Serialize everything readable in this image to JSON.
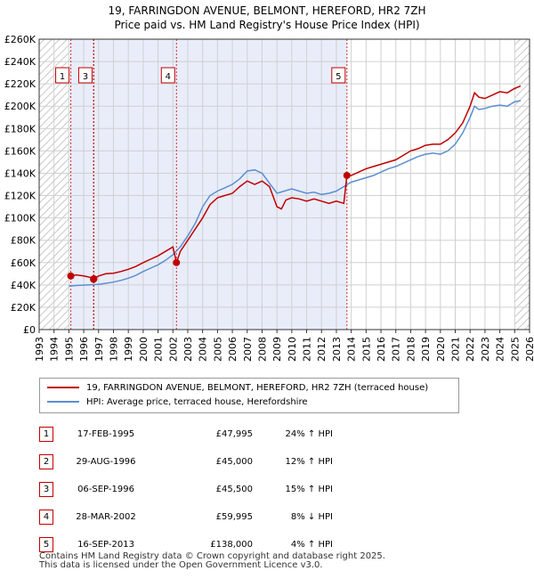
{
  "title_line1": "19, FARRINGDON AVENUE, BELMONT, HEREFORD, HR2 7ZH",
  "title_line2": "Price paid vs. HM Land Registry's House Price Index (HPI)",
  "colors": {
    "price": "#c00000",
    "hpi": "#5b8fd0",
    "shade": "#e9edfa",
    "grid": "#d0d0d0"
  },
  "chart_data": {
    "type": "line",
    "x_range": [
      1993,
      2026
    ],
    "ylim": [
      0,
      260000
    ],
    "y_ticks": [
      {
        "value": 0,
        "label": "£0"
      },
      {
        "value": 20000,
        "label": "£20K"
      },
      {
        "value": 40000,
        "label": "£40K"
      },
      {
        "value": 60000,
        "label": "£60K"
      },
      {
        "value": 80000,
        "label": "£80K"
      },
      {
        "value": 100000,
        "label": "£100K"
      },
      {
        "value": 120000,
        "label": "£120K"
      },
      {
        "value": 140000,
        "label": "£140K"
      },
      {
        "value": 160000,
        "label": "£160K"
      },
      {
        "value": 180000,
        "label": "£180K"
      },
      {
        "value": 200000,
        "label": "£200K"
      },
      {
        "value": 220000,
        "label": "£220K"
      },
      {
        "value": 240000,
        "label": "£240K"
      },
      {
        "value": 260000,
        "label": "£260K"
      }
    ],
    "x_ticks": [
      "1993",
      "1994",
      "1995",
      "1996",
      "1997",
      "1998",
      "1999",
      "2000",
      "2001",
      "2002",
      "2003",
      "2004",
      "2005",
      "2006",
      "2007",
      "2008",
      "2009",
      "2010",
      "2011",
      "2012",
      "2013",
      "2014",
      "2015",
      "2016",
      "2017",
      "2018",
      "2019",
      "2020",
      "2021",
      "2022",
      "2023",
      "2024",
      "2025",
      "2026"
    ],
    "shaded_spans": [
      [
        1995.13,
        2013.71
      ]
    ],
    "hatched_spans": [
      [
        1993,
        1995.13
      ],
      [
        2025.0,
        2026
      ]
    ],
    "series": [
      {
        "name": "19, FARRINGDON AVENUE, BELMONT, HEREFORD, HR2 7ZH (terraced house)",
        "x": [
          1995.13,
          1995.5,
          1996.0,
          1996.5,
          1996.66,
          1996.68,
          1997.0,
          1997.5,
          1998.0,
          1998.5,
          1999.0,
          1999.5,
          2000.0,
          2000.5,
          2001.0,
          2001.5,
          2002.0,
          2002.24,
          2002.5,
          2003.0,
          2003.5,
          2004.0,
          2004.5,
          2005.0,
          2005.5,
          2006.0,
          2006.5,
          2007.0,
          2007.5,
          2008.0,
          2008.5,
          2009.0,
          2009.3,
          2009.6,
          2010.0,
          2010.5,
          2011.0,
          2011.5,
          2012.0,
          2012.5,
          2013.0,
          2013.5,
          2013.71,
          2014.0,
          2014.5,
          2015.0,
          2015.5,
          2016.0,
          2016.5,
          2017.0,
          2017.5,
          2018.0,
          2018.5,
          2019.0,
          2019.5,
          2020.0,
          2020.5,
          2021.0,
          2021.5,
          2022.0,
          2022.3,
          2022.6,
          2023.0,
          2023.5,
          2024.0,
          2024.5,
          2025.0,
          2025.4
        ],
        "values": [
          47995,
          49000,
          48000,
          46500,
          45000,
          45500,
          48000,
          50000,
          50500,
          52000,
          54000,
          56500,
          60000,
          63000,
          66000,
          70000,
          74000,
          59995,
          70000,
          80000,
          90000,
          100000,
          112000,
          118000,
          120000,
          122000,
          128000,
          133000,
          130000,
          133000,
          128000,
          110000,
          108000,
          116000,
          118000,
          117000,
          115000,
          117000,
          115000,
          113000,
          115000,
          113000,
          138000,
          138000,
          141000,
          144000,
          146000,
          148000,
          150000,
          152000,
          156000,
          160000,
          162000,
          165000,
          166000,
          166000,
          170000,
          176000,
          185000,
          200000,
          212000,
          208000,
          207000,
          210000,
          213000,
          212000,
          216000,
          218000
        ]
      },
      {
        "name": "HPI: Average price, terraced house, Herefordshire",
        "x": [
          1995.0,
          1995.5,
          1996.0,
          1996.5,
          1997.0,
          1997.5,
          1998.0,
          1998.5,
          1999.0,
          1999.5,
          2000.0,
          2000.5,
          2001.0,
          2001.5,
          2002.0,
          2002.5,
          2003.0,
          2003.5,
          2004.0,
          2004.5,
          2005.0,
          2005.5,
          2006.0,
          2006.5,
          2007.0,
          2007.5,
          2008.0,
          2008.5,
          2009.0,
          2009.5,
          2010.0,
          2010.5,
          2011.0,
          2011.5,
          2012.0,
          2012.5,
          2013.0,
          2013.5,
          2014.0,
          2014.5,
          2015.0,
          2015.5,
          2016.0,
          2016.5,
          2017.0,
          2017.5,
          2018.0,
          2018.5,
          2019.0,
          2019.5,
          2020.0,
          2020.5,
          2021.0,
          2021.5,
          2022.0,
          2022.3,
          2022.6,
          2023.0,
          2023.5,
          2024.0,
          2024.5,
          2025.0,
          2025.4
        ],
        "values": [
          39000,
          39500,
          39800,
          40200,
          40500,
          41500,
          42500,
          44000,
          46000,
          48500,
          52000,
          55000,
          58000,
          62000,
          67000,
          74000,
          84000,
          95000,
          110000,
          120000,
          124000,
          127000,
          130000,
          135000,
          142000,
          143000,
          140000,
          131000,
          122000,
          124000,
          126000,
          124000,
          122000,
          123000,
          121000,
          122000,
          124000,
          128000,
          132000,
          134000,
          136000,
          138000,
          141000,
          144000,
          146000,
          149000,
          152000,
          155000,
          157000,
          158000,
          157000,
          160000,
          166000,
          176000,
          190000,
          200000,
          197000,
          198000,
          200000,
          201000,
          200000,
          204000,
          205000
        ]
      }
    ],
    "markers": [
      {
        "num": "1",
        "x": 1995.13,
        "value": 47995
      },
      {
        "num": "2",
        "x": 1996.66,
        "value": 45000
      },
      {
        "num": "3",
        "x": 1996.68,
        "value": 45500
      },
      {
        "num": "4",
        "x": 2002.24,
        "value": 59995
      },
      {
        "num": "5",
        "x": 2013.71,
        "value": 138000
      }
    ],
    "marker_labels": [
      {
        "num": "1",
        "x": 1995.13
      },
      {
        "num": "3",
        "x": 1996.68
      },
      {
        "num": "4",
        "x": 2002.24
      },
      {
        "num": "5",
        "x": 2013.71
      }
    ]
  },
  "legend": {
    "price_label": "19, FARRINGDON AVENUE, BELMONT, HEREFORD, HR2 7ZH (terraced house)",
    "hpi_label": "HPI: Average price, terraced house, Herefordshire"
  },
  "transactions": [
    {
      "num": "1",
      "date": "17-FEB-1995",
      "price": "£47,995",
      "hpi": "24% ↑ HPI"
    },
    {
      "num": "2",
      "date": "29-AUG-1996",
      "price": "£45,000",
      "hpi": "12% ↑ HPI"
    },
    {
      "num": "3",
      "date": "06-SEP-1996",
      "price": "£45,500",
      "hpi": "15% ↑ HPI"
    },
    {
      "num": "4",
      "date": "28-MAR-2002",
      "price": "£59,995",
      "hpi": "8% ↓ HPI"
    },
    {
      "num": "5",
      "date": "16-SEP-2013",
      "price": "£138,000",
      "hpi": "4% ↑ HPI"
    }
  ],
  "footer_line1": "Contains HM Land Registry data © Crown copyright and database right 2025.",
  "footer_line2": "This data is licensed under the Open Government Licence v3.0."
}
